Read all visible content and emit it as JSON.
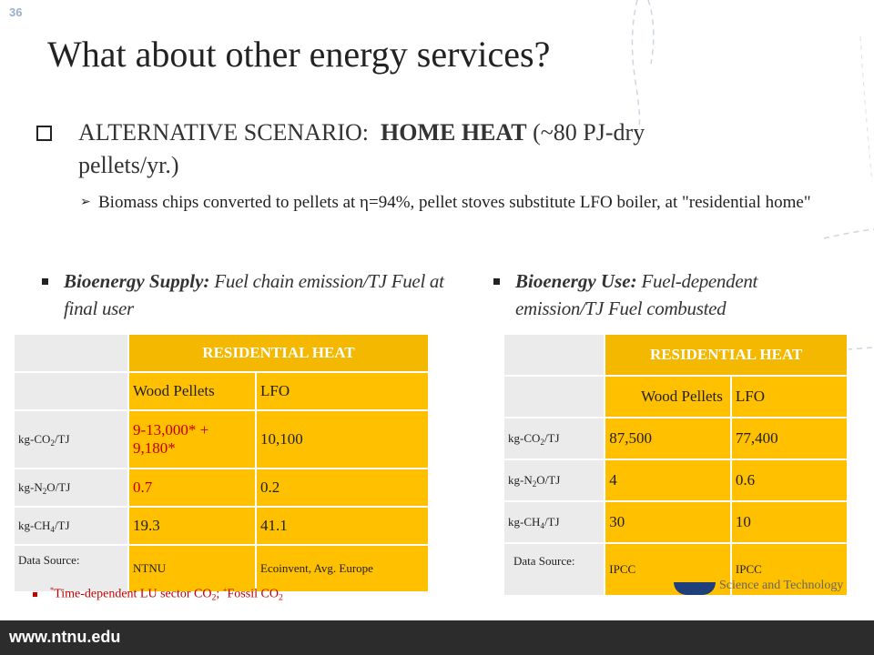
{
  "slide_number": "36",
  "title": "What about other energy services?",
  "main_bullet": {
    "prefix": "ALTERNATIVE SCENARIO:  ",
    "bold": "HOME HEAT",
    "suffix": " (~80 PJ-dry",
    "line2": "pellets/yr.)"
  },
  "sub_bullet": {
    "text": "Biomass chips converted to pellets at η=94%, pellet stoves substitute LFO boiler, at \"residential home\""
  },
  "left_column": {
    "heading_bold": "Bioenergy Supply:",
    "heading_rest": " Fuel chain emission/TJ Fuel at final user",
    "table": {
      "header": "RESIDENTIAL HEAT",
      "col1": "Wood Pellets",
      "col2": "LFO",
      "rows": [
        {
          "label_main": "kg-CO",
          "label_sub": "2",
          "label_end": "/TJ",
          "v1": "9-13,000* + 9,180*",
          "v2": "10,100"
        },
        {
          "label_main": "kg-N",
          "label_sub": "2",
          "label_end": "O/TJ",
          "v1": "0.7",
          "v2": "0.2"
        },
        {
          "label_main": "kg-CH",
          "label_sub": "4",
          "label_end": "/TJ",
          "v1": "19.3",
          "v2": "41.1"
        }
      ],
      "source_label": "Data Source:",
      "source_v1": "NTNU",
      "source_v2": "Ecoinvent, Avg. Europe"
    }
  },
  "right_column": {
    "heading_bold": "Bioenergy Use:",
    "heading_rest": " Fuel-dependent emission/TJ Fuel combusted",
    "table": {
      "header": "RESIDENTIAL HEAT",
      "col1": "Wood Pellets",
      "col2": "LFO",
      "rows": [
        {
          "label_main": "kg-CO",
          "label_sub": "2",
          "label_end": "/TJ",
          "v1": "87,500",
          "v2": "77,400"
        },
        {
          "label_main": "kg-N",
          "label_sub": "2",
          "label_end": "O/TJ",
          "v1": "4",
          "v2": "0.6"
        },
        {
          "label_main": "kg-CH",
          "label_sub": "4",
          "label_end": "/TJ",
          "v1": "30",
          "v2": "10"
        }
      ],
      "source_label": "Data Source:",
      "source_v1": "IPCC",
      "source_v2": "IPCC"
    }
  },
  "footnote": {
    "sup1": "*",
    "text1": "Time-dependent LU sector CO",
    "sub1": "2",
    "sep": "; ",
    "sup2": "+",
    "text2": "Fossil CO",
    "sub2": "2"
  },
  "logo_text": "Science and Technology",
  "footer_url": "www.ntnu.edu",
  "colors": {
    "table_gold": "#ffc000",
    "header_gold": "#f5b800",
    "label_gray": "#ebebeb",
    "footer_dark": "#2c2c2c",
    "footnote_red": "#c00000"
  }
}
